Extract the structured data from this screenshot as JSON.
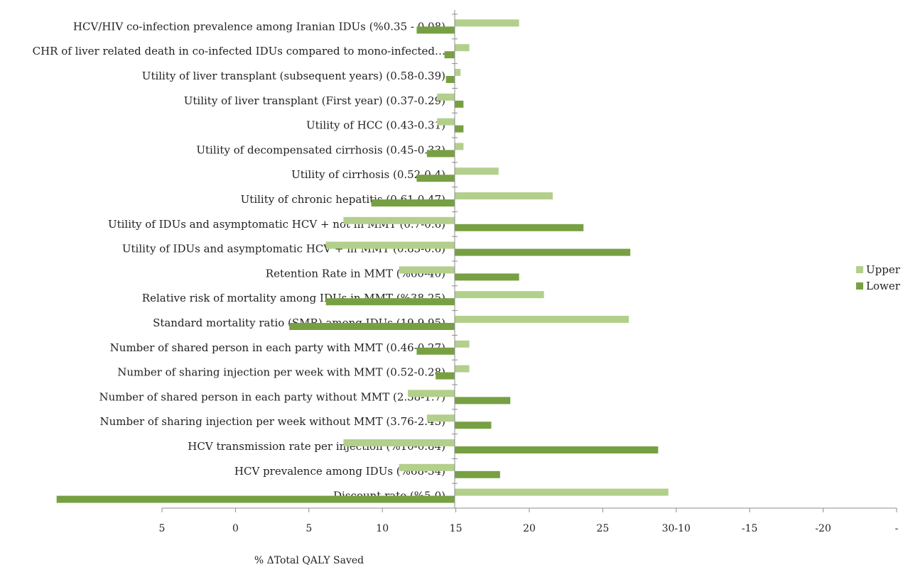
{
  "chart_data": {
    "type": "bar",
    "orientation": "horizontal",
    "xlabel": "%   ΔTotal QALY Saved",
    "zero_at_tick": "15",
    "x_tick_labels": [
      "5",
      "0",
      "5",
      "10",
      "15",
      "20",
      "25",
      "30-10",
      "-15",
      "-20",
      "-"
    ],
    "xlim": [
      -20,
      30
    ],
    "grid": false,
    "legend_position": "right",
    "categories": [
      "HCV/HIV co-infection prevalence among Iranian IDUs (%0.35 - 0.08)",
      "CHR of liver related death in co-infected IDUs compared to mono-infected…",
      "Utility of  liver transplant (subsequent years) (0.58-0.39)",
      "Utility of  liver transplant (First year) (0.37-0.29)",
      "Utility of HCC (0.43-0.31)",
      "Utility of decompensated cirrhosis (0.45-0.33)",
      "Utility of cirrhosis (0.52-0.4)",
      "Utility of  chronic hepatitis (0.61-0.47)",
      "Utility of IDUs and asymptomatic HCV + not in MMT (0.7-0.6)",
      "Utility of IDUs and asymptomatic HCV + in MMT (0.83-0.6)",
      "Retention Rate in MMT (%60-40)",
      "Relative risk of mortality among IDUs in MMT (%38-25)",
      "Standard mortality ratio (SMR) among IDUs (19-9.95)",
      "Number of shared person in each party with MMT (0.46-0.27)",
      "Number of  sharing injection per week with MMT (0.52-0.28)",
      "Number of shared person in each party without MMT (2.38-1.7)",
      "Number of  sharing injection per week without MMT (3.76-2.43)",
      "HCV transmission rate per injection (%10-0.84)",
      "HCV prevalence among IDUs (%68-34)",
      "Discount rate (%5-0)"
    ],
    "series": [
      {
        "name": "Upper",
        "color": "#b3cf8c",
        "values": [
          -4.4,
          -1.0,
          -0.4,
          1.2,
          1.2,
          -0.6,
          -3.0,
          -6.7,
          7.6,
          8.8,
          3.8,
          -6.1,
          -11.9,
          -1.0,
          -1.0,
          3.2,
          1.9,
          7.6,
          3.8,
          -14.6
        ]
      },
      {
        "name": "Lower",
        "color": "#77a043",
        "values": [
          2.6,
          0.7,
          0.6,
          -0.6,
          -0.6,
          1.9,
          2.6,
          5.7,
          -8.8,
          -12.0,
          -4.4,
          8.8,
          11.3,
          2.6,
          1.3,
          -3.8,
          -2.5,
          -13.9,
          -3.1,
          27.2
        ]
      }
    ]
  }
}
